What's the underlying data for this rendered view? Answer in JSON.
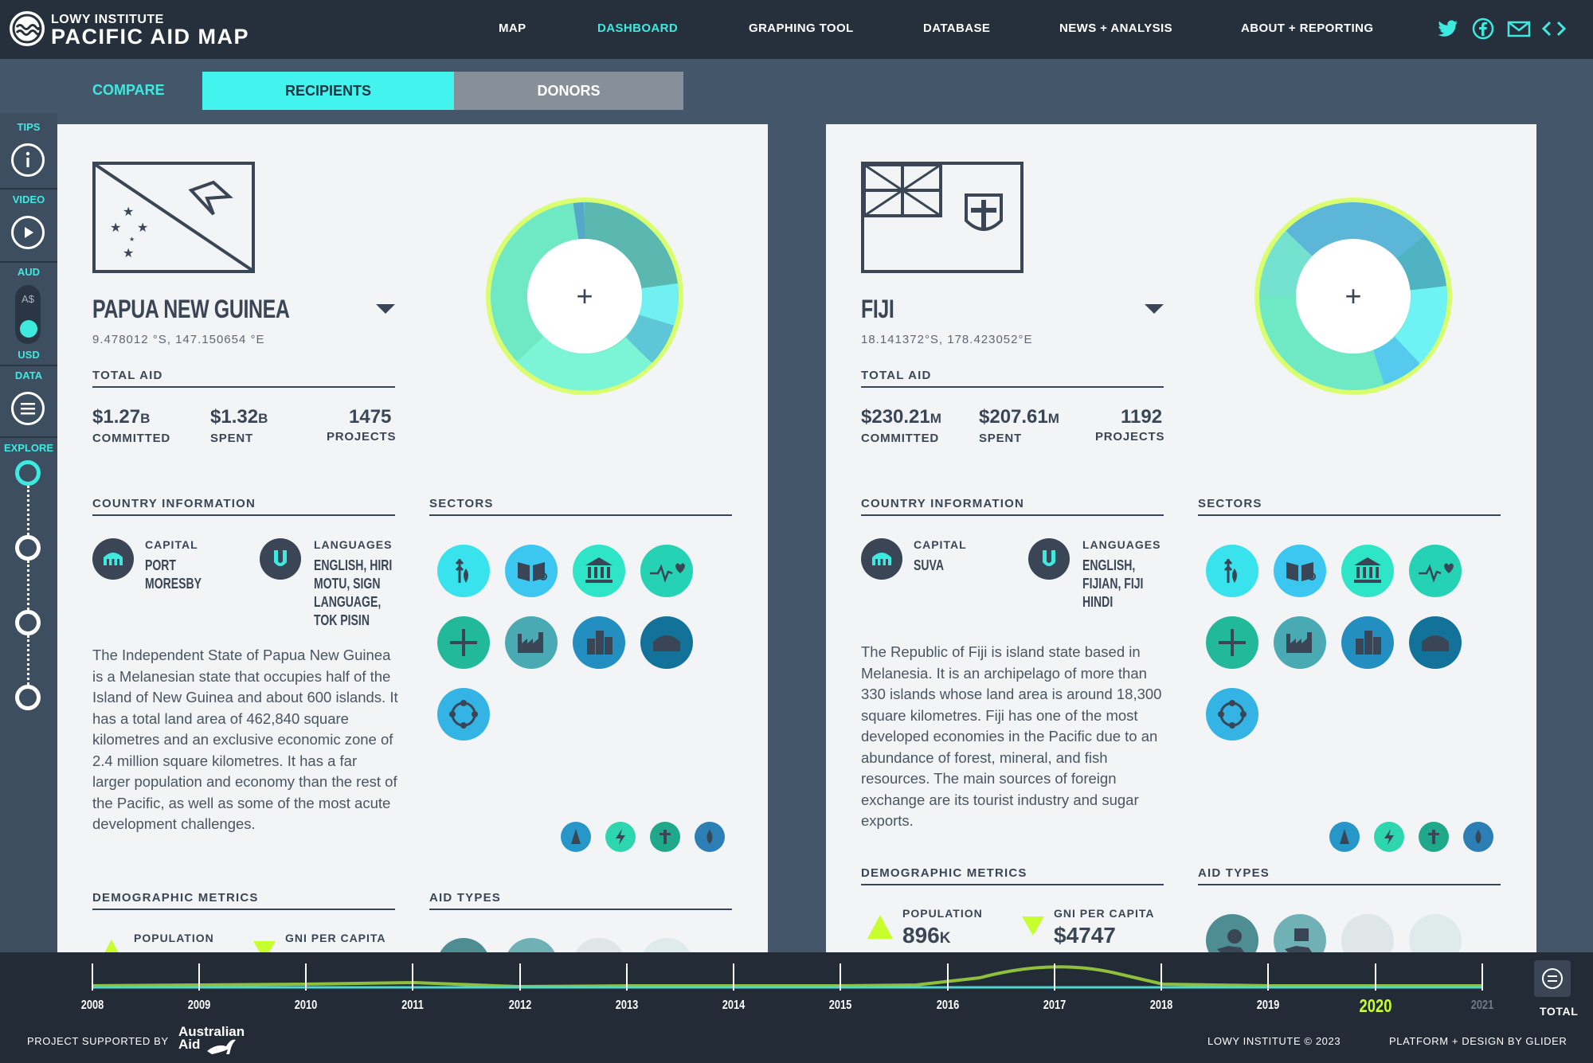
{
  "header": {
    "brand_small": "LOWY INSTITUTE",
    "brand_big": "PACIFIC AID MAP",
    "nav": [
      "MAP",
      "DASHBOARD",
      "GRAPHING TOOL",
      "DATABASE",
      "NEWS + ANALYSIS",
      "ABOUT + REPORTING"
    ],
    "active_nav": "DASHBOARD",
    "social": [
      "twitter-icon",
      "facebook-icon",
      "mail-icon",
      "embed-icon"
    ]
  },
  "tabs": {
    "compare": "COMPARE",
    "recipients": "RECIPIENTS",
    "donors": "DONORS",
    "active": "RECIPIENTS"
  },
  "rail": {
    "tips": "TIPS",
    "video": "VIDEO",
    "aud": "AUD",
    "currency_symbol": "A$",
    "usd": "USD",
    "data": "DATA",
    "explore": "EXPLORE",
    "selected_currency": "USD"
  },
  "labels": {
    "total_aid": "TOTAL AID",
    "committed": "COMMITTED",
    "spent": "SPENT",
    "projects": "PROJECTS",
    "country_information": "COUNTRY INFORMATION",
    "sectors": "SECTORS",
    "capital": "CAPITAL",
    "languages": "LANGUAGES",
    "demographic_metrics": "DEMOGRAPHIC METRICS",
    "aid_types": "AID TYPES",
    "population": "POPULATION",
    "gni_per_capita": "GNI PER CAPITA"
  },
  "countries": [
    {
      "name": "PAPUA NEW GUINEA",
      "coords": "9.478012 °S, 147.150654 °E",
      "committed": "$1.27",
      "committed_unit": "B",
      "spent": "$1.32",
      "spent_unit": "B",
      "projects": "1475",
      "capital": "PORT\nMORESBY",
      "languages": "ENGLISH, HIRI\nMOTU, SIGN\nLANGUAGE,\nTOK PISIN",
      "description": "The Independent State of Papua New Guinea is a Melanesian state that occupies half of the Island of New Guinea and about 600 islands. It has a total land area of 462,840 square kilometres and an exclusive economic zone of 2.4 million square kilometres. It has a far larger population and economy than the rest of the Pacific, as well as some of the most acute development challenges.",
      "population": "",
      "gni": ""
    },
    {
      "name": "FIJI",
      "coords": "18.141372°S, 178.423052°E",
      "committed": "$230.21",
      "committed_unit": "M",
      "spent": "$207.61",
      "spent_unit": "M",
      "projects": "1192",
      "capital": "SUVA",
      "languages": "ENGLISH,\nFIJIAN, FIJI\nHINDI",
      "description": "The Republic of Fiji is island state based in Melanesia. It is an archipelago of more than 330 islands whose land area is around 18,300 square kilometres. Fiji has one of the most developed economies in the Pacific due to an abundance of forest, mineral, and fish resources. The main sources of foreign exchange are its tourist industry and sugar exports.",
      "population": "896",
      "population_unit": "K",
      "gni": "$4747"
    }
  ],
  "donut_plus": "+",
  "timeline": {
    "years": [
      "2008",
      "2009",
      "2010",
      "2011",
      "2012",
      "2013",
      "2014",
      "2015",
      "2016",
      "2017",
      "2018",
      "2019",
      "2020",
      "2021"
    ],
    "active_year": "2020",
    "total_label": "TOTAL"
  },
  "footer": {
    "supported_by": "PROJECT SUPPORTED BY",
    "australian_aid_1": "Australian",
    "australian_aid_2": "Aid",
    "copyright": "LOWY INSTITUTE © 2023",
    "credit": "PLATFORM + DESIGN BY GLIDER"
  },
  "colors": {
    "accent": "#3ee9e0",
    "lime": "#c7ff2e",
    "dark": "#26303d"
  }
}
